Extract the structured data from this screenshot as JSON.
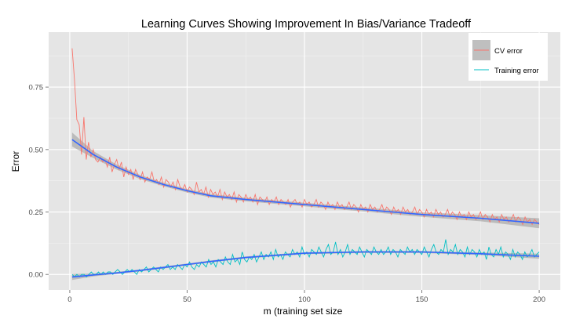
{
  "chart_data": {
    "type": "line",
    "title": "Learning Curves Showing Improvement In Bias/Variance Tradeoff",
    "xlabel": "m (training set size",
    "ylabel": "Error",
    "xlim": [
      -9,
      209
    ],
    "ylim": [
      -0.062,
      0.97
    ],
    "x_ticks": [
      0,
      50,
      100,
      150,
      200
    ],
    "x_tick_labels": [
      "0",
      "50",
      "100",
      "150",
      "200"
    ],
    "y_ticks": [
      0,
      0.25,
      0.5,
      0.75
    ],
    "y_tick_labels": [
      "0.00",
      "0.25",
      "0.50",
      "0.75"
    ],
    "grid": true,
    "legend_position": "top-right",
    "x_range": [
      1,
      200
    ],
    "series": [
      {
        "name": "CV error",
        "color": "#f8766d",
        "values": [
          0.905,
          0.78,
          0.62,
          0.6,
          0.48,
          0.63,
          0.46,
          0.53,
          0.47,
          0.5,
          0.46,
          0.45,
          0.47,
          0.45,
          0.46,
          0.43,
          0.47,
          0.41,
          0.44,
          0.46,
          0.42,
          0.45,
          0.39,
          0.43,
          0.4,
          0.42,
          0.38,
          0.42,
          0.4,
          0.38,
          0.41,
          0.37,
          0.39,
          0.38,
          0.41,
          0.37,
          0.38,
          0.36,
          0.39,
          0.35,
          0.38,
          0.37,
          0.35,
          0.37,
          0.34,
          0.38,
          0.35,
          0.34,
          0.36,
          0.33,
          0.35,
          0.34,
          0.32,
          0.37,
          0.33,
          0.34,
          0.32,
          0.35,
          0.31,
          0.34,
          0.32,
          0.33,
          0.31,
          0.34,
          0.3,
          0.33,
          0.31,
          0.32,
          0.3,
          0.33,
          0.29,
          0.32,
          0.31,
          0.29,
          0.32,
          0.3,
          0.31,
          0.29,
          0.32,
          0.28,
          0.31,
          0.3,
          0.29,
          0.31,
          0.28,
          0.3,
          0.29,
          0.31,
          0.28,
          0.3,
          0.29,
          0.28,
          0.3,
          0.27,
          0.29,
          0.3,
          0.28,
          0.29,
          0.27,
          0.3,
          0.28,
          0.29,
          0.27,
          0.28,
          0.3,
          0.27,
          0.29,
          0.28,
          0.26,
          0.29,
          0.27,
          0.28,
          0.26,
          0.29,
          0.27,
          0.28,
          0.26,
          0.27,
          0.29,
          0.26,
          0.28,
          0.27,
          0.25,
          0.28,
          0.26,
          0.27,
          0.25,
          0.28,
          0.26,
          0.27,
          0.25,
          0.26,
          0.28,
          0.25,
          0.27,
          0.26,
          0.24,
          0.27,
          0.25,
          0.26,
          0.24,
          0.27,
          0.25,
          0.26,
          0.24,
          0.25,
          0.27,
          0.24,
          0.26,
          0.25,
          0.23,
          0.26,
          0.24,
          0.25,
          0.23,
          0.26,
          0.24,
          0.25,
          0.23,
          0.24,
          0.26,
          0.23,
          0.25,
          0.24,
          0.22,
          0.25,
          0.23,
          0.24,
          0.22,
          0.25,
          0.23,
          0.24,
          0.22,
          0.23,
          0.25,
          0.22,
          0.24,
          0.23,
          0.21,
          0.24,
          0.22,
          0.23,
          0.21,
          0.24,
          0.22,
          0.23,
          0.21,
          0.22,
          0.24,
          0.21,
          0.23,
          0.22,
          0.2,
          0.23,
          0.21,
          0.22,
          0.2,
          0.22,
          0.21,
          0.2
        ]
      },
      {
        "name": "Training error",
        "color": "#00bfc4",
        "values": [
          0.0,
          -0.01,
          0.0,
          -0.01,
          0.0,
          0.0,
          -0.01,
          0.0,
          0.01,
          0.0,
          0.0,
          0.01,
          0.0,
          0.01,
          0.0,
          0.01,
          0.01,
          0.0,
          0.01,
          0.02,
          0.01,
          0.0,
          0.01,
          0.02,
          0.01,
          0.02,
          0.01,
          0.0,
          0.02,
          0.01,
          0.02,
          0.03,
          0.01,
          0.02,
          0.03,
          0.02,
          0.01,
          0.03,
          0.02,
          0.03,
          0.04,
          0.02,
          0.03,
          0.02,
          0.04,
          0.03,
          0.02,
          0.04,
          0.03,
          0.05,
          0.03,
          0.02,
          0.04,
          0.03,
          0.05,
          0.04,
          0.03,
          0.06,
          0.04,
          0.05,
          0.03,
          0.06,
          0.05,
          0.04,
          0.07,
          0.05,
          0.04,
          0.08,
          0.05,
          0.06,
          0.04,
          0.09,
          0.06,
          0.05,
          0.07,
          0.06,
          0.08,
          0.05,
          0.07,
          0.09,
          0.06,
          0.08,
          0.07,
          0.09,
          0.06,
          0.1,
          0.07,
          0.08,
          0.06,
          0.09,
          0.08,
          0.07,
          0.1,
          0.08,
          0.09,
          0.07,
          0.11,
          0.08,
          0.09,
          0.07,
          0.1,
          0.09,
          0.08,
          0.11,
          0.09,
          0.07,
          0.1,
          0.12,
          0.08,
          0.09,
          0.13,
          0.08,
          0.1,
          0.07,
          0.09,
          0.12,
          0.08,
          0.1,
          0.09,
          0.08,
          0.11,
          0.09,
          0.07,
          0.1,
          0.09,
          0.08,
          0.11,
          0.09,
          0.08,
          0.1,
          0.08,
          0.09,
          0.11,
          0.08,
          0.1,
          0.09,
          0.07,
          0.1,
          0.09,
          0.08,
          0.11,
          0.09,
          0.1,
          0.08,
          0.1,
          0.09,
          0.08,
          0.11,
          0.09,
          0.07,
          0.1,
          0.12,
          0.09,
          0.08,
          0.1,
          0.09,
          0.14,
          0.08,
          0.1,
          0.09,
          0.12,
          0.08,
          0.1,
          0.09,
          0.07,
          0.11,
          0.08,
          0.1,
          0.09,
          0.07,
          0.1,
          0.08,
          0.09,
          0.06,
          0.11,
          0.08,
          0.07,
          0.1,
          0.08,
          0.11,
          0.07,
          0.09,
          0.08,
          0.06,
          0.1,
          0.07,
          0.09,
          0.08,
          0.06,
          0.09,
          0.07,
          0.08,
          0.1,
          0.07,
          0.08,
          0.09
        ]
      }
    ],
    "smooth": [
      {
        "for": "CV error",
        "color": "#3366ff",
        "ribbon_color": "#999999",
        "x": [
          1,
          10,
          20,
          30,
          40,
          50,
          60,
          75,
          100,
          125,
          150,
          175,
          200
        ],
        "y": [
          0.54,
          0.48,
          0.43,
          0.39,
          0.36,
          0.335,
          0.315,
          0.3,
          0.28,
          0.26,
          0.24,
          0.225,
          0.205
        ],
        "band": [
          0.028,
          0.014,
          0.01,
          0.008,
          0.007,
          0.007,
          0.007,
          0.007,
          0.007,
          0.008,
          0.009,
          0.012,
          0.02
        ]
      },
      {
        "for": "Training error",
        "color": "#3366ff",
        "ribbon_color": "#999999",
        "x": [
          1,
          10,
          20,
          30,
          40,
          50,
          60,
          75,
          100,
          125,
          150,
          175,
          200
        ],
        "y": [
          -0.01,
          -0.002,
          0.006,
          0.016,
          0.028,
          0.04,
          0.052,
          0.068,
          0.085,
          0.09,
          0.09,
          0.083,
          0.073
        ],
        "band": [
          0.012,
          0.006,
          0.004,
          0.004,
          0.004,
          0.004,
          0.004,
          0.004,
          0.004,
          0.004,
          0.004,
          0.005,
          0.01
        ]
      }
    ]
  }
}
